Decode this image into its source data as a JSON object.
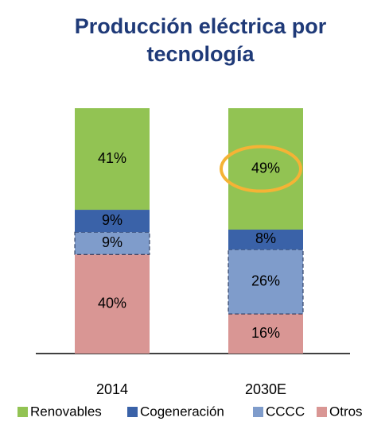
{
  "chart_data": {
    "type": "stacked_bar",
    "title": [
      "Producción eléctrica por",
      "tecnología"
    ],
    "categories": [
      "2014",
      "2030E"
    ],
    "series": [
      {
        "name": "Renovables",
        "color": "#92c353",
        "values": [
          41,
          49
        ],
        "value_labels": [
          "41%",
          "49%"
        ]
      },
      {
        "name": "Cogeneración",
        "color": "#3a62a8",
        "values": [
          9,
          8
        ],
        "value_labels": [
          "9%",
          "8%"
        ]
      },
      {
        "name": "CCCC",
        "color": "#7f9ccb",
        "values": [
          9,
          26
        ],
        "value_labels": [
          "9%",
          "26%"
        ]
      },
      {
        "name": "Otros",
        "color": "#d99694",
        "values": [
          40,
          16
        ],
        "value_labels": [
          "40%",
          "16%"
        ]
      }
    ],
    "legend": "bottom"
  }
}
